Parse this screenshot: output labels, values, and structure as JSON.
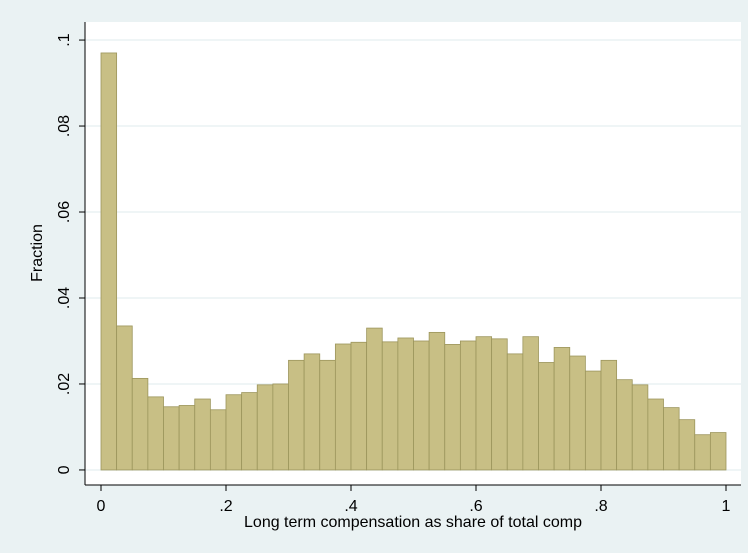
{
  "chart_data": {
    "type": "histogram",
    "xlabel": "Long term compensation as share of total comp",
    "ylabel": "Fraction",
    "bins": [
      0,
      0.025,
      0.05,
      0.075,
      0.1,
      0.125,
      0.15,
      0.175,
      0.2,
      0.225,
      0.25,
      0.275,
      0.3,
      0.325,
      0.35,
      0.375,
      0.4,
      0.425,
      0.45,
      0.475,
      0.5,
      0.525,
      0.55,
      0.575,
      0.6,
      0.625,
      0.65,
      0.675,
      0.7,
      0.725,
      0.75,
      0.775,
      0.8,
      0.825,
      0.85,
      0.875,
      0.9,
      0.925,
      0.95,
      0.975,
      1
    ],
    "counts": [
      0.097,
      0.0335,
      0.0213,
      0.017,
      0.0147,
      0.015,
      0.0165,
      0.014,
      0.0175,
      0.018,
      0.0198,
      0.02,
      0.0255,
      0.027,
      0.0255,
      0.0293,
      0.0297,
      0.033,
      0.0298,
      0.0307,
      0.03,
      0.032,
      0.0292,
      0.03,
      0.031,
      0.0305,
      0.027,
      0.031,
      0.025,
      0.0285,
      0.0265,
      0.023,
      0.0255,
      0.021,
      0.0198,
      0.0165,
      0.0145,
      0.0117,
      0.0082,
      0.0087
    ],
    "color": "#c8bf85",
    "edgecolor": "#9c955c",
    "xlim": [
      -0.0256,
      1.024
    ],
    "ylim": [
      -0.0035,
      0.1042
    ],
    "xticks": [
      0,
      {
        "value": 0.2,
        "label": ".2"
      },
      {
        "value": 0.4,
        "label": ".4"
      },
      {
        "value": 0.6,
        "label": ".6"
      },
      {
        "value": 0.8,
        "label": ".8"
      },
      1
    ],
    "yticks": [
      0,
      {
        "value": 0.02,
        "label": ".02"
      },
      {
        "value": 0.04,
        "label": ".04"
      },
      {
        "value": 0.06,
        "label": ".06"
      },
      {
        "value": 0.08,
        "label": ".08"
      },
      {
        "value": 0.1,
        "label": ".1"
      }
    ],
    "grid": true
  }
}
